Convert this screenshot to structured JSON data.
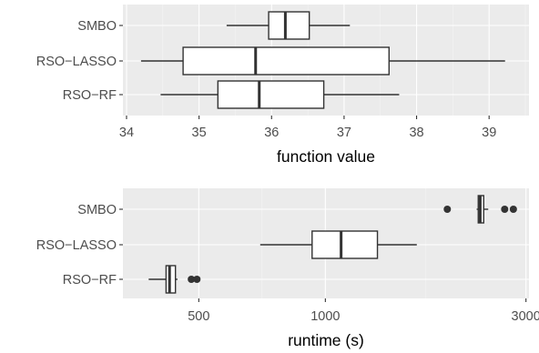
{
  "chart_data": [
    {
      "type": "boxplot",
      "xlabel": "function value",
      "x_scale": "linear",
      "xlim": [
        33.95,
        39.55
      ],
      "x_ticks": [
        34,
        35,
        36,
        37,
        38,
        39
      ],
      "x_tick_labels": [
        "34",
        "35",
        "36",
        "37",
        "38",
        "39"
      ],
      "categories": [
        "SMBO",
        "RSO−LASSO",
        "RSO−RF"
      ],
      "boxes": [
        {
          "name": "SMBO",
          "whisker_low": 35.38,
          "q1": 35.96,
          "median": 36.19,
          "q3": 36.52,
          "whisker_high": 37.08,
          "outliers": []
        },
        {
          "name": "RSO−LASSO",
          "whisker_low": 34.2,
          "q1": 34.78,
          "median": 35.78,
          "q3": 37.62,
          "whisker_high": 39.22,
          "outliers": []
        },
        {
          "name": "RSO−RF",
          "whisker_low": 34.47,
          "q1": 35.26,
          "median": 35.83,
          "q3": 36.72,
          "whisker_high": 37.76,
          "outliers": []
        }
      ],
      "grid": true
    },
    {
      "type": "boxplot",
      "xlabel": "runtime (s)",
      "x_scale": "log",
      "xlim": [
        330,
        3050
      ],
      "x_ticks": [
        500,
        1000,
        3000
      ],
      "x_tick_labels": [
        "500",
        "1000",
        "3000"
      ],
      "categories": [
        "SMBO",
        "RSO−LASSO",
        "RSO−RF"
      ],
      "boxes": [
        {
          "name": "SMBO",
          "whisker_low": 2290,
          "q1": 2310,
          "median": 2335,
          "q3": 2380,
          "whisker_high": 2440,
          "outliers": [
            1950,
            2670,
            2800
          ]
        },
        {
          "name": "RSO−LASSO",
          "whisker_low": 700,
          "q1": 930,
          "median": 1090,
          "q3": 1330,
          "whisker_high": 1650,
          "outliers": []
        },
        {
          "name": "RSO−RF",
          "whisker_low": 380,
          "q1": 418,
          "median": 426,
          "q3": 440,
          "whisker_high": 445,
          "outliers": [
            480,
            495
          ]
        }
      ],
      "grid": true
    }
  ]
}
